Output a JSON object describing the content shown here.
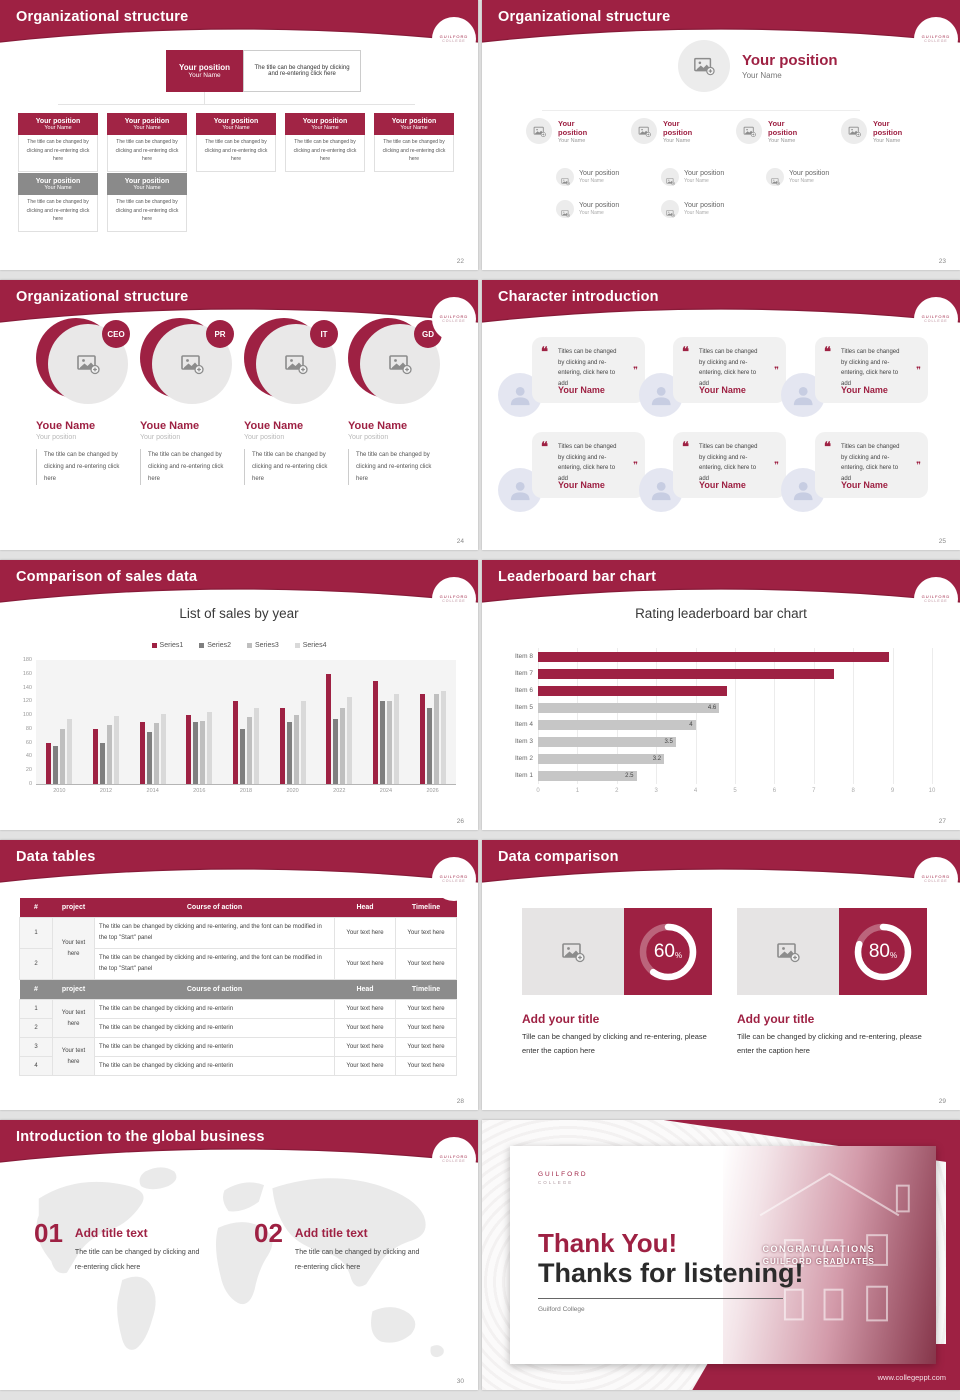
{
  "colors": {
    "accent": "#9e2143",
    "accent_edge": "#871a38",
    "gray_header": "#8a8a8a",
    "series": [
      "#9e2143",
      "#7f7f7f",
      "#bfbfbf",
      "#d9d9d9"
    ],
    "hbar_gray": "#c6c6c6"
  },
  "common": {
    "logo_line1": "GUILFORD",
    "logo_line2": "COLLEGE",
    "position": "Your position",
    "name": "Your Name",
    "box_caption": "The title can be changed by clicking and re-entering click here"
  },
  "slides": {
    "org_boxes": {
      "title": "Organizational structure",
      "page": "22"
    },
    "org_photos": {
      "title": "Organizational structure",
      "page": "23"
    },
    "org_circles": {
      "title": "Organizational structure",
      "page": "24",
      "members": [
        {
          "badge": "CEO"
        },
        {
          "badge": "PR"
        },
        {
          "badge": "IT"
        },
        {
          "badge": "GD"
        }
      ],
      "member_name": "Youe Name",
      "member_position": "Your position",
      "member_caption": "The title can be changed by clicking and re-entering click here"
    },
    "characters": {
      "title": "Character introduction",
      "page": "25",
      "quote": "Titles can be changed by clicking and re-entering, click here to add",
      "name": "Your Name"
    },
    "sales": {
      "title": "Comparison of sales data",
      "page": "26"
    },
    "leaderboard": {
      "title": "Leaderboard bar chart",
      "page": "27"
    },
    "tables": {
      "title": "Data tables",
      "page": "28",
      "columns": [
        "#",
        "project",
        "Course of action",
        "Head",
        "Timeline"
      ],
      "table1": {
        "project": "Your text here",
        "rows": [
          {
            "num": "1",
            "course": "The title can be changed by clicking and re-entering, and the font can be modified in the top \"Start\" panel",
            "head": "Your text here",
            "timeline": "Your text here"
          },
          {
            "num": "2",
            "course": "The title can be changed by clicking and re-entering, and the font can be modified in the top \"Start\" panel",
            "head": "Your text here",
            "timeline": "Your text here"
          }
        ]
      },
      "table2": {
        "projects": [
          "Your text here",
          "Your text here"
        ],
        "rows": [
          {
            "num": "1",
            "course": "The title can be changed by clicking and re-enterin",
            "head": "Your text here",
            "timeline": "Your text here"
          },
          {
            "num": "2",
            "course": "The title can be changed by clicking and re-enterin",
            "head": "Your text here",
            "timeline": "Your text here"
          },
          {
            "num": "3",
            "course": "The title can be changed by clicking and re-enterin",
            "head": "Your text here",
            "timeline": "Your text here"
          },
          {
            "num": "4",
            "course": "The title can be changed by clicking and re-enterin",
            "head": "Your text here",
            "timeline": "Your text here"
          }
        ]
      }
    },
    "comparison": {
      "title": "Data comparison",
      "page": "29",
      "panel_title": "Add your title",
      "panel_caption": "Tille can be changed by clicking and re-entering, please enter the caption here"
    },
    "global": {
      "title": "Introduction to the global business",
      "page": "30",
      "items": [
        {
          "num": "01"
        },
        {
          "num": "02"
        }
      ],
      "item_title": "Add title text",
      "item_caption": "The title can be changed by clicking and re-entering click here"
    },
    "thanks": {
      "logo1": "GUILFORD",
      "logo2": "COLLEGE",
      "heading": "Thank You!",
      "subheading": "Thanks for listening!",
      "footer": "Guilford College",
      "site": "www.collegeppt.com",
      "banner1": "CONGRATULATIONS",
      "banner2": "GUILFORD GRADUATES"
    }
  },
  "chart_data": [
    {
      "type": "bar",
      "title": "List of sales by year",
      "categories": [
        "2010",
        "2012",
        "2014",
        "2016",
        "2018",
        "2020",
        "2022",
        "2024",
        "2026"
      ],
      "series": [
        {
          "name": "Series1",
          "color": "#9e2143",
          "values": [
            60,
            80,
            90,
            100,
            120,
            110,
            160,
            150,
            130
          ]
        },
        {
          "name": "Series2",
          "color": "#7f7f7f",
          "values": [
            55,
            60,
            75,
            90,
            80,
            90,
            95,
            120,
            110
          ]
        },
        {
          "name": "Series3",
          "color": "#bfbfbf",
          "values": [
            80,
            86,
            88,
            92,
            97,
            100,
            110,
            120,
            130
          ]
        },
        {
          "name": "Series4",
          "color": "#d9d9d9",
          "values": [
            95,
            99,
            102,
            105,
            110,
            120,
            127,
            130,
            135
          ]
        }
      ],
      "ylim": [
        0,
        180
      ],
      "ytick": 20,
      "grid": false,
      "legend_position": "top"
    },
    {
      "type": "bar-horizontal",
      "title": "Rating leaderboard bar chart",
      "categories": [
        "Item 8",
        "Item 7",
        "Item 6",
        "Item 5",
        "Item 4",
        "Item 3",
        "Item 2",
        "Item 1"
      ],
      "values": [
        8.9,
        7.5,
        4.8,
        4.6,
        4,
        3.5,
        3.2,
        2.5
      ],
      "colors": [
        "#9e2143",
        "#9e2143",
        "#9e2143",
        "#c6c6c6",
        "#c6c6c6",
        "#c6c6c6",
        "#c6c6c6",
        "#c6c6c6"
      ],
      "data_labels": [
        null,
        null,
        null,
        "4.6",
        "4",
        "3.5",
        "3.2",
        "2.5"
      ],
      "xlim": [
        0,
        10
      ],
      "xtick": 1,
      "grid": true
    },
    {
      "type": "donut",
      "value": 60,
      "label": "60",
      "unit": "%"
    },
    {
      "type": "donut",
      "value": 80,
      "label": "80",
      "unit": "%"
    }
  ]
}
